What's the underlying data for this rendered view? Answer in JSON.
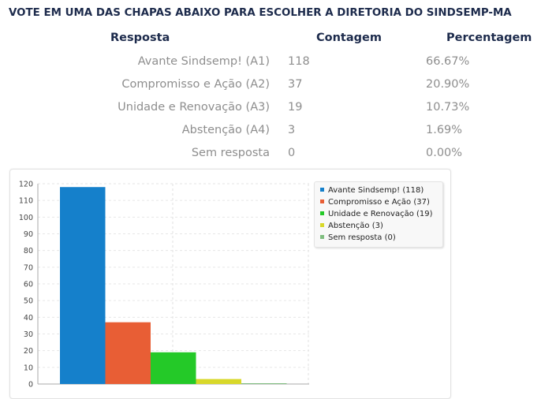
{
  "survey": {
    "question": "VOTE EM UMA DAS CHAPAS ABAIXO PARA ESCOLHER A DIRETORIA DO SINDSEMP-MA",
    "headers": {
      "answer": "Resposta",
      "count": "Contagem",
      "percent": "Percentagem"
    },
    "rows": [
      {
        "label": "Avante Sindsemp! (A1)",
        "count": "118",
        "percent": "66.67%"
      },
      {
        "label": "Compromisso e Ação (A2)",
        "count": "37",
        "percent": "20.90%"
      },
      {
        "label": "Unidade e Renovação (A3)",
        "count": "19",
        "percent": "10.73%"
      },
      {
        "label": "Abstenção (A4)",
        "count": "3",
        "percent": "1.69%"
      },
      {
        "label": "Sem resposta",
        "count": "0",
        "percent": "0.00%"
      }
    ]
  },
  "chart_data": {
    "type": "bar",
    "categories": [
      "Avante Sindsemp! (118)",
      "Compromisso e Ação (37)",
      "Unidade e Renovação (19)",
      "Abstenção (3)",
      "Sem resposta (0)"
    ],
    "values": [
      118,
      37,
      19,
      3,
      0
    ],
    "colors": [
      "#1580cb",
      "#e85e35",
      "#24c928",
      "#d8d82a",
      "#7fbd7f"
    ],
    "yticks": [
      0,
      10,
      20,
      30,
      40,
      50,
      60,
      70,
      80,
      90,
      100,
      110,
      120
    ],
    "ylim": [
      0,
      120
    ],
    "legend_position": "top-right",
    "grid": true
  }
}
